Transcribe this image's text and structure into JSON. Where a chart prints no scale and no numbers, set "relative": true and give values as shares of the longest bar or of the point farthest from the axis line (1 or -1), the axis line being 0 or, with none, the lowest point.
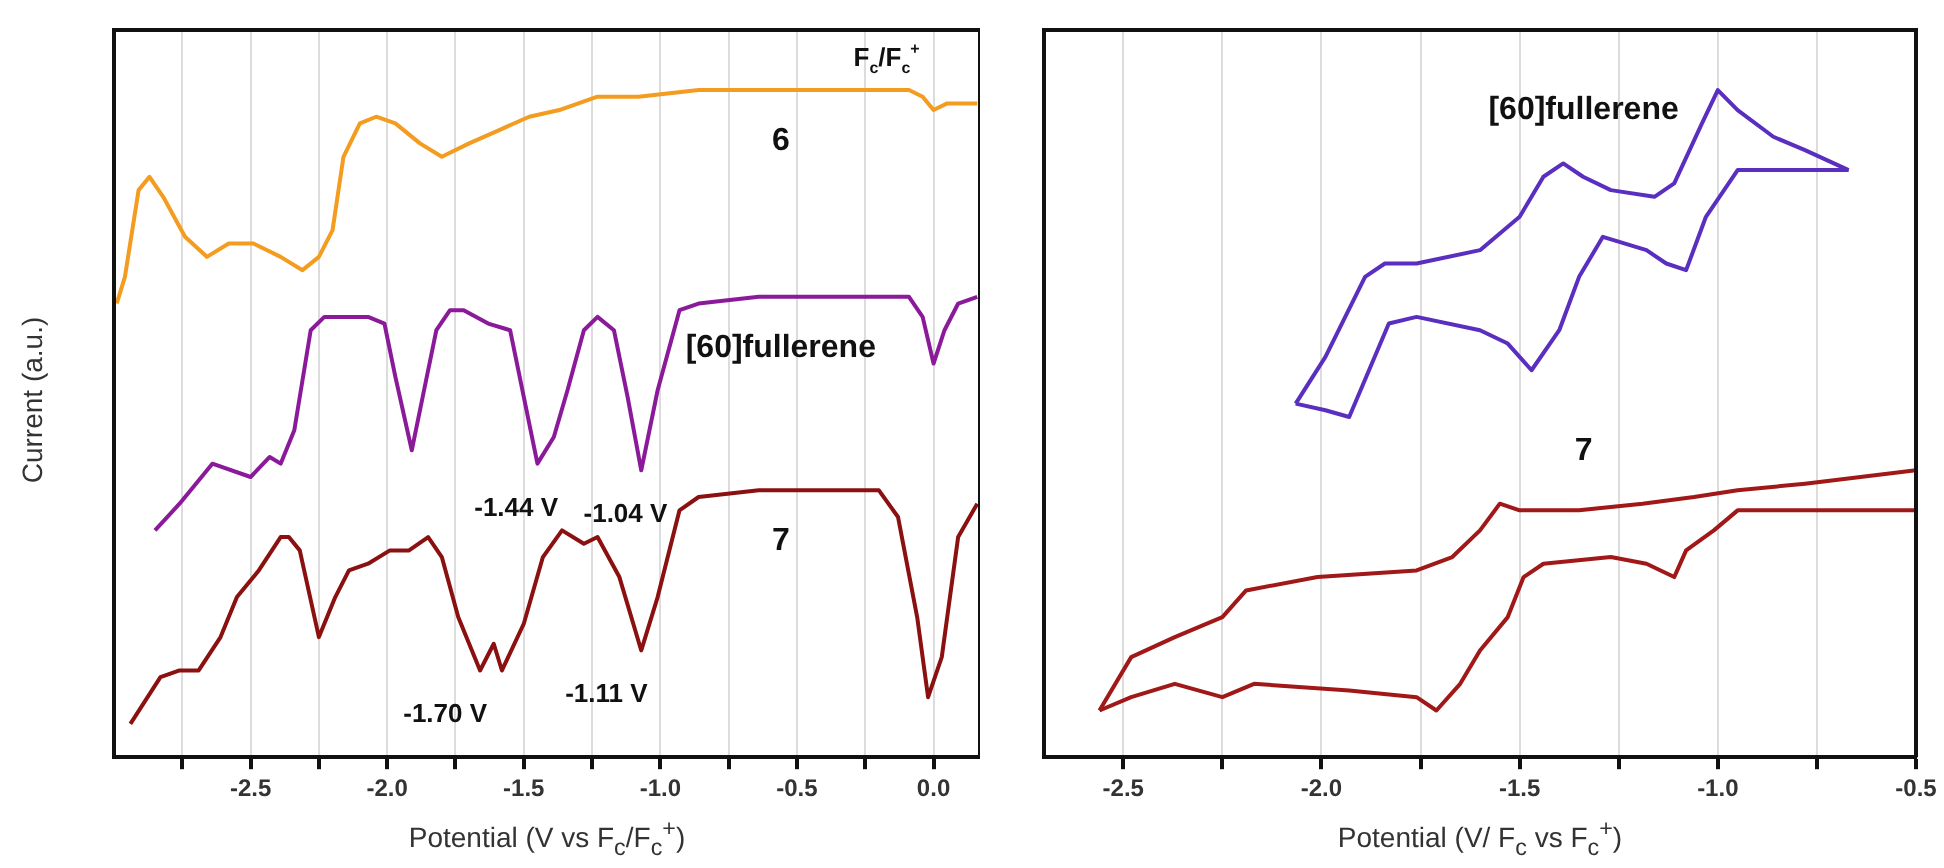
{
  "chart_data": [
    {
      "type": "line",
      "xlabel": "Potential (V vs F$_{c}$/F$_{c}$$^{+}$)",
      "ylabel": "Current (a.u.)",
      "relative": true,
      "grid": "x",
      "xlim": [
        -3.0,
        0.17
      ],
      "xticks": [
        {
          "value": -2.75,
          "label": null
        },
        {
          "value": -2.5,
          "label": "-2.5"
        },
        {
          "value": -2.25,
          "label": null
        },
        {
          "value": -2,
          "label": "-2.0"
        },
        {
          "value": -1.75,
          "label": null
        },
        {
          "value": -1.5,
          "label": "-1.5"
        },
        {
          "value": -1.25,
          "label": null
        },
        {
          "value": -1,
          "label": "-1.0"
        },
        {
          "value": -0.75,
          "label": null
        },
        {
          "value": -0.5,
          "label": "-0.5"
        },
        {
          "value": -0.25,
          "label": null
        },
        {
          "value": 0,
          "label": "0.0"
        }
      ],
      "series": [
        {
          "name": "6",
          "color": "#f39c1f",
          "x": [
            -2.99,
            -2.96,
            -2.91,
            -2.87,
            -2.82,
            -2.74,
            -2.66,
            -2.58,
            -2.49,
            -2.39,
            -2.31,
            -2.25,
            -2.2,
            -2.16,
            -2.1,
            -2.04,
            -1.97,
            -1.88,
            -1.8,
            -1.7,
            -1.59,
            -1.48,
            -1.37,
            -1.23,
            -1.08,
            -0.86,
            -0.5,
            -0.09,
            -0.04,
            0.0,
            0.05,
            0.16
          ],
          "values": [
            0.68,
            0.72,
            0.85,
            0.87,
            0.84,
            0.78,
            0.75,
            0.77,
            0.77,
            0.75,
            0.73,
            0.75,
            0.79,
            0.9,
            0.95,
            0.96,
            0.95,
            0.92,
            0.9,
            0.92,
            0.94,
            0.96,
            0.97,
            0.99,
            0.99,
            1.0,
            1.0,
            1.0,
            0.99,
            0.97,
            0.98,
            0.98
          ]
        },
        {
          "name": "[60]fullerene",
          "color": "#8b1a9a",
          "x": [
            -2.85,
            -2.76,
            -2.64,
            -2.5,
            -2.43,
            -2.39,
            -2.34,
            -2.28,
            -2.23,
            -2.18,
            -2.07,
            -2.01,
            -1.97,
            -1.91,
            -1.87,
            -1.82,
            -1.77,
            -1.72,
            -1.63,
            -1.55,
            -1.5,
            -1.45,
            -1.39,
            -1.34,
            -1.28,
            -1.23,
            -1.17,
            -1.12,
            -1.07,
            -1.01,
            -0.93,
            -0.86,
            -0.64,
            -0.09,
            -0.04,
            0.0,
            0.04,
            0.09,
            0.16
          ],
          "values": [
            0.34,
            0.38,
            0.44,
            0.42,
            0.45,
            0.44,
            0.49,
            0.64,
            0.66,
            0.66,
            0.66,
            0.65,
            0.57,
            0.46,
            0.54,
            0.64,
            0.67,
            0.67,
            0.65,
            0.64,
            0.54,
            0.44,
            0.48,
            0.55,
            0.64,
            0.66,
            0.64,
            0.54,
            0.43,
            0.55,
            0.67,
            0.68,
            0.69,
            0.69,
            0.66,
            0.59,
            0.64,
            0.68,
            0.69
          ]
        },
        {
          "name": "7",
          "color": "#8b1010",
          "x": [
            -2.94,
            -2.83,
            -2.76,
            -2.69,
            -2.61,
            -2.55,
            -2.47,
            -2.39,
            -2.36,
            -2.32,
            -2.25,
            -2.19,
            -2.14,
            -2.07,
            -1.99,
            -1.92,
            -1.85,
            -1.8,
            -1.74,
            -1.66,
            -1.61,
            -1.58,
            -1.5,
            -1.43,
            -1.36,
            -1.28,
            -1.23,
            -1.15,
            -1.07,
            -1.01,
            -0.93,
            -0.86,
            -0.64,
            -0.2,
            -0.13,
            -0.06,
            -0.02,
            0.03,
            0.09,
            0.16
          ],
          "values": [
            0.05,
            0.12,
            0.13,
            0.13,
            0.18,
            0.24,
            0.28,
            0.33,
            0.33,
            0.31,
            0.18,
            0.24,
            0.28,
            0.29,
            0.31,
            0.31,
            0.33,
            0.3,
            0.21,
            0.13,
            0.17,
            0.13,
            0.2,
            0.3,
            0.34,
            0.32,
            0.33,
            0.27,
            0.16,
            0.24,
            0.37,
            0.39,
            0.4,
            0.4,
            0.36,
            0.21,
            0.09,
            0.15,
            0.33,
            0.38
          ]
        }
      ],
      "annotations": [
        {
          "text": "F$_{c}$/F$_{c}$$^{+}$",
          "x": -0.04,
          "y": 0.97
        },
        {
          "text": "-1.44 V",
          "x": -1.44,
          "y": 0.44
        },
        {
          "text": "-1.04 V",
          "x": -1.04,
          "y": 0.43
        },
        {
          "text": "-1.70 V",
          "x": -1.7,
          "y": 0.13
        },
        {
          "text": "-1.11 V",
          "x": -1.11,
          "y": 0.16
        }
      ]
    },
    {
      "type": "line",
      "xlabel": "Potential (V/ F$_{c}$ vs F$_{c}$$^{+}$)",
      "relative": true,
      "grid": "x",
      "xlim": [
        -2.7,
        -0.5
      ],
      "xticks": [
        {
          "value": -2.5,
          "label": "-2.5"
        },
        {
          "value": -2.25,
          "label": null
        },
        {
          "value": -2,
          "label": "-2.0"
        },
        {
          "value": -1.75,
          "label": null
        },
        {
          "value": -1.5,
          "label": "-1.5"
        },
        {
          "value": -1.25,
          "label": null
        },
        {
          "value": -1,
          "label": "-1.0"
        },
        {
          "value": -0.75,
          "label": null
        },
        {
          "value": -0.5,
          "label": "-0.5"
        }
      ],
      "series": [
        {
          "name": "[60]fullerene",
          "color": "#5a2fc0",
          "x": [
            -2.065,
            -1.99,
            -1.89,
            -1.84,
            -1.76,
            -1.6,
            -1.5,
            -1.44,
            -1.39,
            -1.34,
            -1.27,
            -1.16,
            -1.11,
            -1.04,
            -1.0,
            -0.95,
            -0.86,
            -0.78,
            -0.67
          ],
          "values": [
            0.53,
            0.6,
            0.72,
            0.74,
            0.74,
            0.76,
            0.81,
            0.87,
            0.89,
            0.87,
            0.85,
            0.84,
            0.86,
            0.95,
            1.0,
            0.97,
            0.93,
            0.91,
            0.88
          ]
        },
        {
          "color": "#5a2fc0",
          "x": [
            -2.065,
            -1.99,
            -1.93,
            -1.88,
            -1.83,
            -1.76,
            -1.6,
            -1.53,
            -1.47,
            -1.4,
            -1.35,
            -1.29,
            -1.18,
            -1.13,
            -1.08,
            -1.03,
            -0.95,
            -0.86,
            -0.67
          ],
          "values": [
            0.53,
            0.52,
            0.51,
            0.58,
            0.65,
            0.66,
            0.64,
            0.62,
            0.58,
            0.64,
            0.72,
            0.78,
            0.76,
            0.74,
            0.73,
            0.81,
            0.88,
            0.88,
            0.88
          ]
        },
        {
          "name": "7",
          "color": "#a01818",
          "x": [
            -2.56,
            -2.48,
            -2.37,
            -2.25,
            -2.19,
            -2.01,
            -1.76,
            -1.67,
            -1.6,
            -1.55,
            -1.5,
            -1.35,
            -1.19,
            -1.06,
            -0.95,
            -0.78,
            -0.5
          ],
          "values": [
            0.07,
            0.15,
            0.18,
            0.21,
            0.25,
            0.27,
            0.28,
            0.3,
            0.34,
            0.38,
            0.37,
            0.37,
            0.38,
            0.39,
            0.4,
            0.41,
            0.43
          ]
        },
        {
          "color": "#a01818",
          "x": [
            -2.56,
            -2.48,
            -2.37,
            -2.25,
            -2.17,
            -1.93,
            -1.76,
            -1.71,
            -1.65,
            -1.6,
            -1.53,
            -1.49,
            -1.44,
            -1.27,
            -1.18,
            -1.11,
            -1.08,
            -1.01,
            -0.95,
            -0.78,
            -0.5
          ],
          "values": [
            0.07,
            0.09,
            0.11,
            0.09,
            0.11,
            0.1,
            0.09,
            0.07,
            0.11,
            0.16,
            0.21,
            0.27,
            0.29,
            0.3,
            0.29,
            0.27,
            0.31,
            0.34,
            0.37,
            0.37,
            0.37
          ]
        }
      ]
    }
  ]
}
